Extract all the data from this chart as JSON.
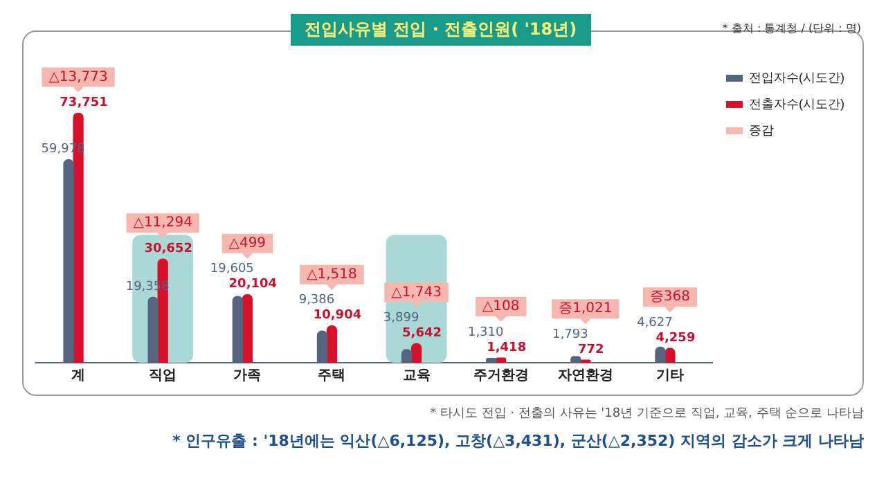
{
  "chart_data": {
    "type": "bar",
    "title": "전입사유별 전입 · 전출인원( '18년)",
    "subtitle": "* 출처 : 통계청 / (단위 : 명)",
    "categories": [
      "계",
      "직업",
      "가족",
      "주택",
      "교육",
      "주거환경",
      "자연환경",
      "기타"
    ],
    "series": [
      {
        "name": "전입자수(시도간)",
        "color": "#56657f",
        "values": [
          59978,
          19358,
          19605,
          9386,
          3899,
          1310,
          1793,
          4627
        ],
        "value_labels": [
          "59,978",
          "19,358",
          "19,605",
          "9,386",
          "3,899",
          "1,310",
          "1,793",
          "4,627"
        ]
      },
      {
        "name": "전출자수(시도간)",
        "color": "#d7102b",
        "values": [
          73751,
          30652,
          20104,
          10904,
          5642,
          1418,
          772,
          4259
        ],
        "value_labels": [
          "73,751",
          "30,652",
          "20,104",
          "10,904",
          "5,642",
          "1,418",
          "772",
          "4,259"
        ]
      },
      {
        "name": "증감",
        "color": "#f6b8ae",
        "values": [
          null,
          null,
          null,
          null,
          null,
          null,
          null,
          null
        ],
        "value_labels": [
          "△13,773",
          "△11,294",
          "△499",
          "△1,518",
          "△1,743",
          "△108",
          "증1,021",
          "증368"
        ]
      }
    ],
    "grid": false,
    "legend": "top right",
    "tick_labels": "x",
    "bands": [
      {
        "axis": "x",
        "from": "직업",
        "to": "직업",
        "color": "#a9d8d6"
      },
      {
        "axis": "x",
        "from": "교육",
        "to": "교육",
        "color": "#a9d8d6"
      }
    ],
    "annotations": [
      "* 타시도 전입 · 전출의 사유는 '18년 기준으로 직업, 교육, 주택 순으로 나타남",
      "* 인구유출 : '18년에는 익산(△6,125), 고창(△3,431), 군산(△2,352) 지역의 감소가 크게 나타남"
    ]
  }
}
